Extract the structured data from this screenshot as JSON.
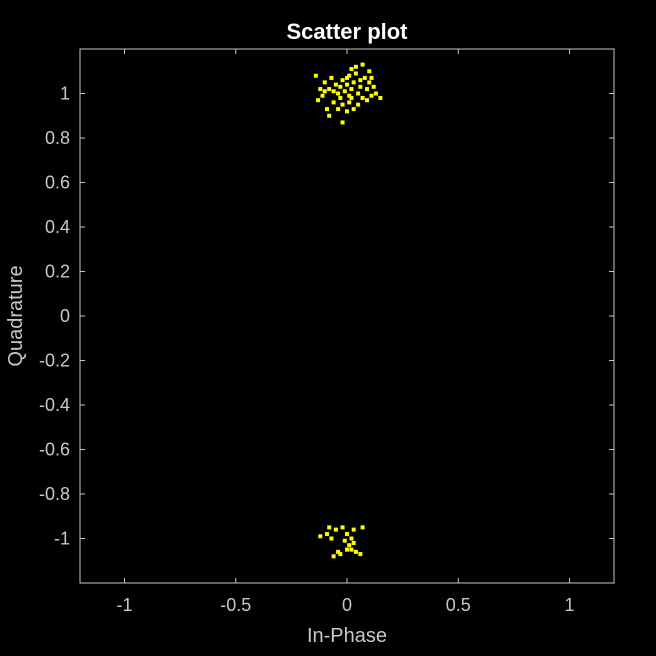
{
  "chart_data": {
    "type": "scatter",
    "title": "Scatter plot",
    "xlabel": "In-Phase",
    "ylabel": "Quadrature",
    "xlim": [
      -1.2,
      1.2
    ],
    "ylim": [
      -1.2,
      1.2
    ],
    "xticks": [
      -1,
      -0.5,
      0,
      0.5,
      1
    ],
    "xtick_labels": [
      "-1",
      "-0.5",
      "0",
      "0.5",
      "1"
    ],
    "yticks": [
      1,
      0.8,
      0.6,
      0.4,
      0.2,
      0,
      -0.2,
      -0.4,
      -0.6,
      -0.8,
      -1
    ],
    "ytick_labels": [
      "1",
      "0.8",
      "0.6",
      "0.4",
      "0.2",
      "0",
      "-0.2",
      "-0.4",
      "-0.6",
      "-0.8",
      "-1"
    ],
    "grid": false,
    "colors": {
      "background": "#000000",
      "axes": "#c8c8c8",
      "marker": "#ffff00",
      "title": "#ffffff"
    },
    "series": [
      {
        "marker": "square",
        "points": [
          [
            -0.14,
            1.08
          ],
          [
            -0.1,
            1.05
          ],
          [
            -0.08,
            1.02
          ],
          [
            -0.11,
            0.99
          ],
          [
            -0.13,
            0.97
          ],
          [
            -0.07,
            1.07
          ],
          [
            -0.05,
            1.04
          ],
          [
            -0.04,
            1.0
          ],
          [
            -0.03,
            1.03
          ],
          [
            -0.02,
            1.06
          ],
          [
            -0.01,
            1.01
          ],
          [
            0.0,
            1.04
          ],
          [
            0.01,
            0.99
          ],
          [
            0.02,
            1.02
          ],
          [
            0.03,
            1.05
          ],
          [
            0.04,
            1.09
          ],
          [
            0.05,
            1.0
          ],
          [
            0.06,
            1.03
          ],
          [
            0.07,
            0.98
          ],
          [
            0.08,
            1.07
          ],
          [
            0.09,
            1.02
          ],
          [
            0.1,
            1.05
          ],
          [
            0.11,
            0.99
          ],
          [
            0.12,
            1.03
          ],
          [
            0.13,
            1.0
          ],
          [
            0.15,
            0.98
          ],
          [
            0.02,
            1.11
          ],
          [
            0.04,
            1.12
          ],
          [
            0.07,
            1.13
          ],
          [
            0.1,
            1.1
          ],
          [
            -0.06,
            0.96
          ],
          [
            -0.02,
            0.95
          ],
          [
            0.01,
            0.96
          ],
          [
            0.05,
            0.95
          ],
          [
            -0.04,
            0.93
          ],
          [
            -0.09,
            0.93
          ],
          [
            0.0,
            0.92
          ],
          [
            -0.02,
            0.87
          ],
          [
            -0.08,
            0.9
          ],
          [
            0.03,
            0.93
          ],
          [
            -0.12,
            1.02
          ],
          [
            -0.06,
            1.01
          ],
          [
            0.0,
            1.07
          ],
          [
            0.06,
            1.06
          ],
          [
            0.09,
            0.97
          ],
          [
            -0.03,
            0.98
          ],
          [
            0.02,
            0.98
          ],
          [
            0.11,
            1.07
          ],
          [
            -0.1,
            1.01
          ],
          [
            0.01,
            1.08
          ],
          [
            -0.08,
            -0.95
          ],
          [
            -0.05,
            -0.96
          ],
          [
            -0.02,
            -0.95
          ],
          [
            0.03,
            -0.96
          ],
          [
            0.07,
            -0.95
          ],
          [
            -0.09,
            -0.98
          ],
          [
            0.0,
            -0.98
          ],
          [
            -0.12,
            -0.99
          ],
          [
            -0.07,
            -1.0
          ],
          [
            0.02,
            -1.0
          ],
          [
            -0.01,
            -1.01
          ],
          [
            0.03,
            -1.02
          ],
          [
            0.01,
            -1.03
          ],
          [
            0.0,
            -1.05
          ],
          [
            0.02,
            -1.05
          ],
          [
            -0.04,
            -1.06
          ],
          [
            0.04,
            -1.06
          ],
          [
            0.06,
            -1.07
          ],
          [
            -0.06,
            -1.08
          ],
          [
            -0.03,
            -1.07
          ]
        ]
      }
    ]
  }
}
